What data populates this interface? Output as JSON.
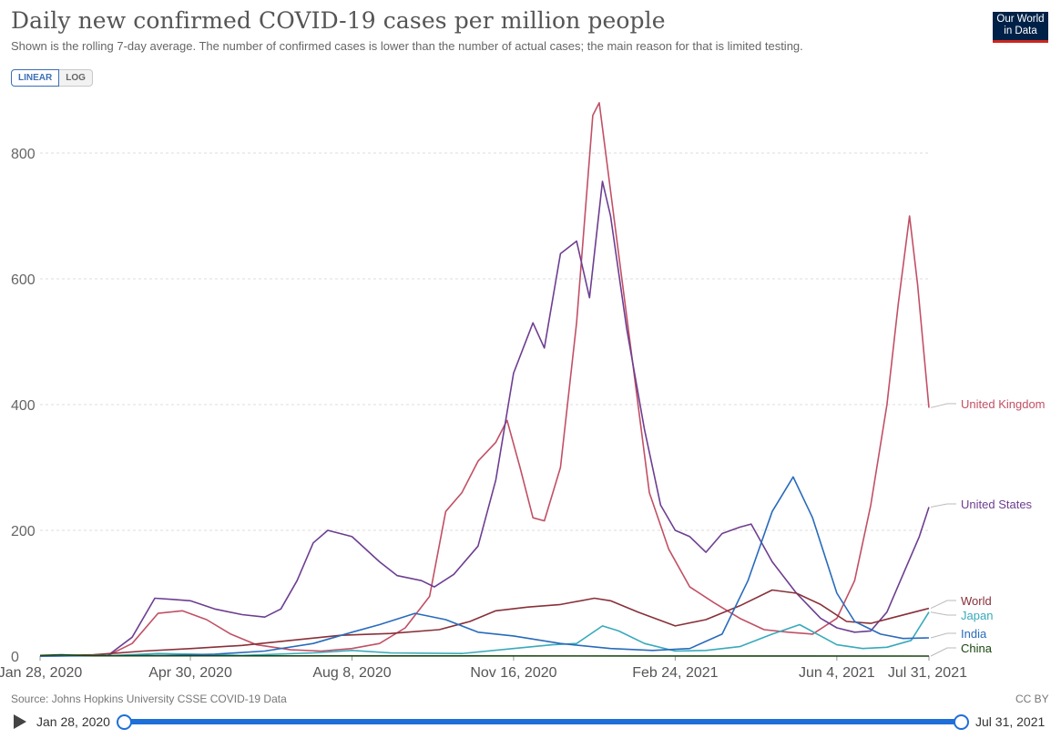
{
  "header": {
    "title": "Daily new confirmed COVID-19 cases per million people",
    "subtitle": "Shown is the rolling 7-day average. The number of confirmed cases is lower than the number of actual cases; the main reason for that is limited testing.",
    "logo_line1": "Our World",
    "logo_line2": "in Data"
  },
  "controls": {
    "linear_label": "LINEAR",
    "log_label": "LOG",
    "selected": "LINEAR"
  },
  "footer": {
    "source": "Source: Johns Hopkins University CSSE COVID-19 Data",
    "license": "CC BY"
  },
  "timeline": {
    "start_label": "Jan 28, 2020",
    "end_label": "Jul 31, 2021"
  },
  "colors": {
    "United Kingdom": "#c15065",
    "United States": "#6d3e91",
    "World": "#883039",
    "Japan": "#38aaba",
    "India": "#286bbb",
    "China": "#18470f"
  },
  "chart_data": {
    "type": "line",
    "title": "Daily new confirmed COVID-19 cases per million people",
    "ylim": [
      0,
      900
    ],
    "yticks": [
      0,
      200,
      400,
      600,
      800
    ],
    "xticks": [
      "Jan 28, 2020",
      "Apr 30, 2020",
      "Aug 8, 2020",
      "Nov 16, 2020",
      "Feb 24, 2021",
      "Jun 4, 2021",
      "Jul 31, 2021"
    ],
    "x_range": [
      "2020-01-28",
      "2021-07-31"
    ],
    "grid": "horizontal-dashed",
    "legend": "right-end-labels",
    "series": [
      {
        "name": "United Kingdom",
        "color": "#c15065",
        "points": [
          [
            "2020-01-28",
            0
          ],
          [
            "2020-03-10",
            1
          ],
          [
            "2020-03-25",
            20
          ],
          [
            "2020-04-10",
            68
          ],
          [
            "2020-04-25",
            72
          ],
          [
            "2020-05-10",
            58
          ],
          [
            "2020-05-25",
            35
          ],
          [
            "2020-06-10",
            18
          ],
          [
            "2020-07-01",
            10
          ],
          [
            "2020-07-20",
            8
          ],
          [
            "2020-08-08",
            12
          ],
          [
            "2020-08-25",
            20
          ],
          [
            "2020-09-10",
            45
          ],
          [
            "2020-09-25",
            95
          ],
          [
            "2020-10-05",
            230
          ],
          [
            "2020-10-15",
            260
          ],
          [
            "2020-10-25",
            310
          ],
          [
            "2020-11-05",
            340
          ],
          [
            "2020-11-12",
            375
          ],
          [
            "2020-11-20",
            300
          ],
          [
            "2020-11-28",
            220
          ],
          [
            "2020-12-05",
            215
          ],
          [
            "2020-12-15",
            300
          ],
          [
            "2020-12-25",
            530
          ],
          [
            "2021-01-04",
            860
          ],
          [
            "2021-01-08",
            880
          ],
          [
            "2021-01-18",
            680
          ],
          [
            "2021-01-28",
            480
          ],
          [
            "2021-02-08",
            260
          ],
          [
            "2021-02-20",
            170
          ],
          [
            "2021-03-05",
            110
          ],
          [
            "2021-03-20",
            85
          ],
          [
            "2021-04-05",
            60
          ],
          [
            "2021-04-20",
            42
          ],
          [
            "2021-05-05",
            38
          ],
          [
            "2021-05-20",
            35
          ],
          [
            "2021-06-04",
            60
          ],
          [
            "2021-06-15",
            120
          ],
          [
            "2021-06-25",
            240
          ],
          [
            "2021-07-05",
            400
          ],
          [
            "2021-07-12",
            560
          ],
          [
            "2021-07-19",
            700
          ],
          [
            "2021-07-24",
            590
          ],
          [
            "2021-07-31",
            395
          ]
        ]
      },
      {
        "name": "United States",
        "color": "#6d3e91",
        "points": [
          [
            "2020-01-28",
            0
          ],
          [
            "2020-03-10",
            1
          ],
          [
            "2020-03-25",
            30
          ],
          [
            "2020-04-08",
            92
          ],
          [
            "2020-04-20",
            90
          ],
          [
            "2020-04-30",
            88
          ],
          [
            "2020-05-15",
            75
          ],
          [
            "2020-06-01",
            66
          ],
          [
            "2020-06-15",
            62
          ],
          [
            "2020-06-25",
            75
          ],
          [
            "2020-07-05",
            120
          ],
          [
            "2020-07-15",
            180
          ],
          [
            "2020-07-24",
            200
          ],
          [
            "2020-08-08",
            190
          ],
          [
            "2020-08-25",
            150
          ],
          [
            "2020-09-05",
            128
          ],
          [
            "2020-09-20",
            120
          ],
          [
            "2020-09-28",
            110
          ],
          [
            "2020-10-10",
            130
          ],
          [
            "2020-10-25",
            175
          ],
          [
            "2020-11-05",
            280
          ],
          [
            "2020-11-16",
            450
          ],
          [
            "2020-11-28",
            530
          ],
          [
            "2020-12-05",
            490
          ],
          [
            "2020-12-15",
            640
          ],
          [
            "2020-12-25",
            660
          ],
          [
            "2021-01-02",
            570
          ],
          [
            "2021-01-10",
            755
          ],
          [
            "2021-01-15",
            700
          ],
          [
            "2021-01-25",
            520
          ],
          [
            "2021-02-05",
            360
          ],
          [
            "2021-02-15",
            240
          ],
          [
            "2021-02-24",
            200
          ],
          [
            "2021-03-05",
            190
          ],
          [
            "2021-03-15",
            165
          ],
          [
            "2021-03-25",
            195
          ],
          [
            "2021-04-05",
            205
          ],
          [
            "2021-04-12",
            210
          ],
          [
            "2021-04-25",
            150
          ],
          [
            "2021-05-10",
            100
          ],
          [
            "2021-05-25",
            60
          ],
          [
            "2021-06-04",
            45
          ],
          [
            "2021-06-15",
            38
          ],
          [
            "2021-06-25",
            40
          ],
          [
            "2021-07-05",
            70
          ],
          [
            "2021-07-15",
            130
          ],
          [
            "2021-07-25",
            190
          ],
          [
            "2021-07-31",
            237
          ]
        ]
      },
      {
        "name": "World",
        "color": "#883039",
        "points": [
          [
            "2020-01-28",
            0
          ],
          [
            "2020-03-01",
            2
          ],
          [
            "2020-04-01",
            8
          ],
          [
            "2020-05-01",
            12
          ],
          [
            "2020-06-01",
            17
          ],
          [
            "2020-07-01",
            25
          ],
          [
            "2020-08-01",
            33
          ],
          [
            "2020-09-01",
            36
          ],
          [
            "2020-10-01",
            42
          ],
          [
            "2020-10-20",
            55
          ],
          [
            "2020-11-05",
            72
          ],
          [
            "2020-11-25",
            78
          ],
          [
            "2020-12-15",
            82
          ],
          [
            "2021-01-05",
            92
          ],
          [
            "2021-01-15",
            88
          ],
          [
            "2021-02-01",
            70
          ],
          [
            "2021-02-24",
            48
          ],
          [
            "2021-03-15",
            58
          ],
          [
            "2021-04-05",
            80
          ],
          [
            "2021-04-25",
            105
          ],
          [
            "2021-05-10",
            100
          ],
          [
            "2021-05-25",
            82
          ],
          [
            "2021-06-10",
            55
          ],
          [
            "2021-06-25",
            52
          ],
          [
            "2021-07-10",
            62
          ],
          [
            "2021-07-31",
            76
          ]
        ]
      },
      {
        "name": "Japan",
        "color": "#38aaba",
        "points": [
          [
            "2020-01-28",
            0
          ],
          [
            "2020-03-15",
            1
          ],
          [
            "2020-04-10",
            4
          ],
          [
            "2020-05-01",
            3
          ],
          [
            "2020-06-01",
            1
          ],
          [
            "2020-07-15",
            5
          ],
          [
            "2020-08-08",
            9
          ],
          [
            "2020-09-01",
            5
          ],
          [
            "2020-10-15",
            4
          ],
          [
            "2020-11-16",
            12
          ],
          [
            "2020-12-10",
            18
          ],
          [
            "2020-12-25",
            20
          ],
          [
            "2021-01-10",
            48
          ],
          [
            "2021-01-20",
            40
          ],
          [
            "2021-02-05",
            20
          ],
          [
            "2021-02-24",
            8
          ],
          [
            "2021-03-15",
            9
          ],
          [
            "2021-04-05",
            15
          ],
          [
            "2021-04-25",
            35
          ],
          [
            "2021-05-12",
            50
          ],
          [
            "2021-05-25",
            32
          ],
          [
            "2021-06-04",
            18
          ],
          [
            "2021-06-20",
            12
          ],
          [
            "2021-07-05",
            14
          ],
          [
            "2021-07-20",
            25
          ],
          [
            "2021-07-31",
            70
          ]
        ]
      },
      {
        "name": "India",
        "color": "#286bbb",
        "points": [
          [
            "2020-01-28",
            0
          ],
          [
            "2020-04-15",
            1
          ],
          [
            "2020-05-15",
            3
          ],
          [
            "2020-06-15",
            8
          ],
          [
            "2020-07-15",
            20
          ],
          [
            "2020-08-08",
            38
          ],
          [
            "2020-08-25",
            50
          ],
          [
            "2020-09-16",
            68
          ],
          [
            "2020-10-05",
            58
          ],
          [
            "2020-10-25",
            38
          ],
          [
            "2020-11-16",
            32
          ],
          [
            "2020-12-15",
            20
          ],
          [
            "2021-01-15",
            12
          ],
          [
            "2021-02-10",
            9
          ],
          [
            "2021-03-05",
            12
          ],
          [
            "2021-03-25",
            35
          ],
          [
            "2021-04-10",
            120
          ],
          [
            "2021-04-25",
            230
          ],
          [
            "2021-05-08",
            285
          ],
          [
            "2021-05-20",
            220
          ],
          [
            "2021-06-04",
            100
          ],
          [
            "2021-06-15",
            55
          ],
          [
            "2021-07-01",
            35
          ],
          [
            "2021-07-15",
            28
          ],
          [
            "2021-07-31",
            29
          ]
        ]
      },
      {
        "name": "China",
        "color": "#18470f",
        "points": [
          [
            "2020-01-28",
            1
          ],
          [
            "2020-02-10",
            2
          ],
          [
            "2020-03-01",
            0.5
          ],
          [
            "2021-07-31",
            0
          ]
        ]
      }
    ]
  }
}
